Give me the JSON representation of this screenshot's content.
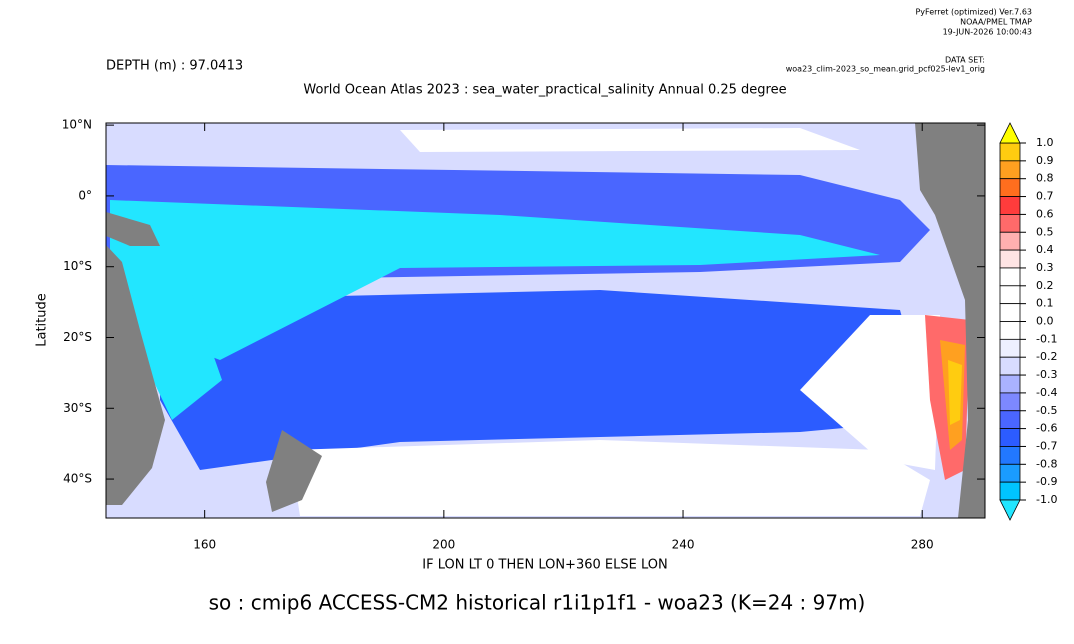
{
  "chart_data": {
    "type": "contour",
    "header_lines": [
      "PyFerret (optimized) Ver.7.63",
      "NOAA/PMEL TMAP",
      "19-JUN-2026 10:00:43"
    ],
    "dataset_label": "DATA SET:",
    "dataset_name": "woa23_clim-2023_so_mean.grid_pcf025-lev1_orig",
    "depth_label": "DEPTH (m) : 97.0413",
    "title": "World Ocean Atlas 2023 : sea_water_practical_salinity Annual  0.25 degree",
    "xlabel": "IF LON LT 0 THEN LON+360 ELSE LON",
    "ylabel": "Latitude",
    "footer": "so : cmip6 ACCESS-CM2 historical r1i1p1f1 - woa23  (K=24 : 97m)",
    "xlim": [
      143.5,
      290.5
    ],
    "ylim": [
      -45.5,
      10.3
    ],
    "xticks": [
      160,
      200,
      240,
      280
    ],
    "yticks": [
      {
        "value": 10,
        "label": "10°N"
      },
      {
        "value": 0,
        "label": "0°"
      },
      {
        "value": -10,
        "label": "10°S"
      },
      {
        "value": -20,
        "label": "20°S"
      },
      {
        "value": -30,
        "label": "30°S"
      },
      {
        "value": -40,
        "label": "40°S"
      }
    ],
    "colorbar": {
      "levels": [
        {
          "value": 1.0,
          "label": "1.0"
        },
        {
          "value": 0.9,
          "label": "0.9"
        },
        {
          "value": 0.8,
          "label": "0.8"
        },
        {
          "value": 0.7,
          "label": "0.7"
        },
        {
          "value": 0.6,
          "label": "0.6"
        },
        {
          "value": 0.5,
          "label": "0.5"
        },
        {
          "value": 0.4,
          "label": "0.4"
        },
        {
          "value": 0.3,
          "label": "0.3"
        },
        {
          "value": 0.2,
          "label": "0.2"
        },
        {
          "value": 0.1,
          "label": "0.1"
        },
        {
          "value": 0.0,
          "label": "0.0"
        },
        {
          "value": -0.1,
          "label": "-0.1"
        },
        {
          "value": -0.2,
          "label": "-0.2"
        },
        {
          "value": -0.3,
          "label": "-0.3"
        },
        {
          "value": -0.4,
          "label": "-0.4"
        },
        {
          "value": -0.5,
          "label": "-0.5"
        },
        {
          "value": -0.6,
          "label": "-0.6"
        },
        {
          "value": -0.7,
          "label": "-0.7"
        },
        {
          "value": -0.8,
          "label": "-0.8"
        },
        {
          "value": -0.9,
          "label": "-0.9"
        },
        {
          "value": -1.0,
          "label": "-1.0"
        }
      ],
      "colors": [
        "#22e6ff",
        "#00c4ff",
        "#1a9cff",
        "#2278ff",
        "#2c5cff",
        "#4a66ff",
        "#7d88ff",
        "#aab2ff",
        "#d8dcff",
        "#eef0ff",
        "#ffffff",
        "#ffffff",
        "#ffffff",
        "#ffffff",
        "#ffe4e4",
        "#ffb0b0",
        "#ff6a6a",
        "#ff3c3c",
        "#ff6e1e",
        "#ffa020",
        "#ffcc10",
        "#ffff00"
      ],
      "extend": "both"
    }
  }
}
